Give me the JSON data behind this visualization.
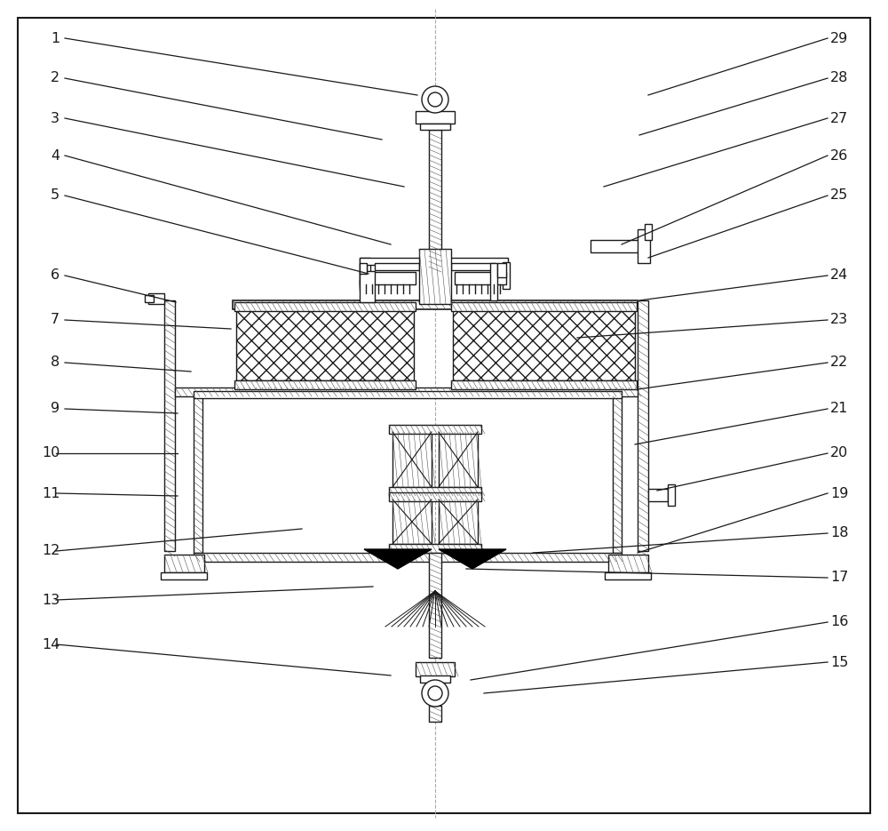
{
  "fig_width": 10.0,
  "fig_height": 9.35,
  "dpi": 100,
  "bg_color": "#ffffff",
  "lc": "#1a1a1a"
}
